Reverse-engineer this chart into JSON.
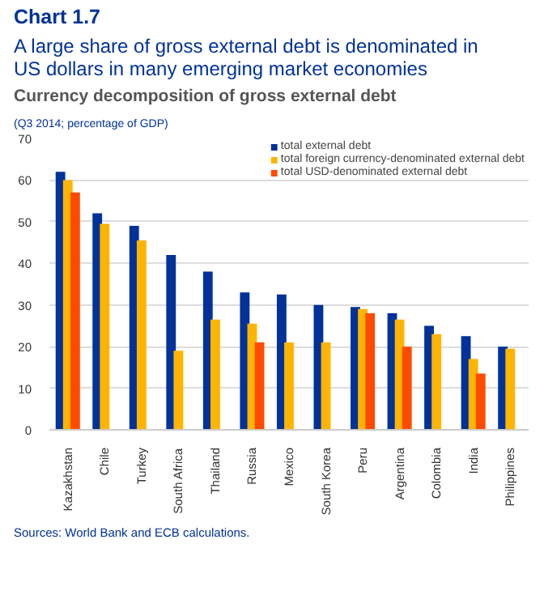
{
  "chart_data": {
    "type": "bar",
    "title": "Chart 1.7",
    "subtitle": "A large share of gross external debt is denominated in US dollars in many emerging market economies",
    "annotations": [
      "Currency decomposition of gross external debt",
      "(Q3 2014; percentage of GDP)",
      "Sources: World Bank and ECB calculations."
    ],
    "categories": [
      "Kazakhstan",
      "Chile",
      "Turkey",
      "South Africa",
      "Thailand",
      "Russia",
      "Mexico",
      "South Korea",
      "Peru",
      "Argentina",
      "Colombia",
      "India",
      "Philippines"
    ],
    "series": [
      {
        "name": "total external debt",
        "color": "#003299",
        "values": [
          62,
          52,
          49,
          42,
          38,
          33,
          32.5,
          30,
          29.5,
          28,
          25,
          22.5,
          20
        ]
      },
      {
        "name": "total foreign currency-denominated external debt",
        "color": "#ffb400",
        "values": [
          60,
          49.5,
          45.5,
          19,
          26.5,
          25.5,
          21,
          21,
          29,
          26.5,
          23,
          17,
          19.5
        ]
      },
      {
        "name": "total USD-denominated external debt",
        "color": "#ff4b00",
        "values": [
          57,
          null,
          null,
          null,
          null,
          21,
          null,
          null,
          28,
          20,
          null,
          13.5,
          null
        ]
      }
    ],
    "ylim": [
      0,
      70
    ],
    "yticks": [
      0,
      10,
      20,
      30,
      40,
      50,
      60,
      70
    ],
    "grid": "y",
    "legend": "top right"
  }
}
